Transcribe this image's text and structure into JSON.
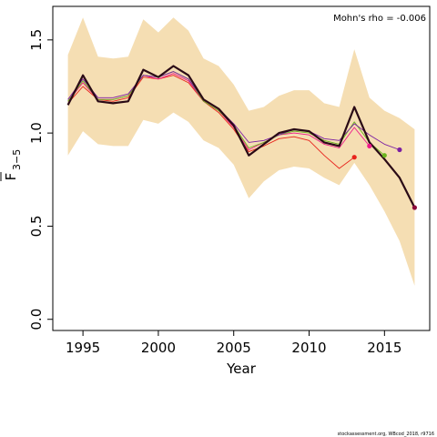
{
  "chart_data": {
    "type": "line",
    "xlabel": "Year",
    "ylabel_main": "F",
    "ylabel_sub": "3−5",
    "xlim": [
      1993,
      2018
    ],
    "ylim": [
      -0.06,
      1.68
    ],
    "x_ticks": [
      1995,
      2000,
      2005,
      2010,
      2015
    ],
    "y_ticks": [
      0.0,
      0.5,
      1.0,
      1.5
    ],
    "y_tick_labels": [
      "0.0",
      "0.5",
      "1.0",
      "1.5"
    ],
    "annotation": "Mohn's rho = -0.006",
    "footer": "stockassessment.org, WBcod_2018, r9716",
    "colors": {
      "band": "#f5deb3",
      "main": "#2a0a16"
    },
    "band": {
      "x": [
        1994,
        1995,
        1996,
        1997,
        1998,
        1999,
        2000,
        2001,
        2002,
        2003,
        2004,
        2005,
        2006,
        2007,
        2008,
        2009,
        2010,
        2011,
        2012,
        2013,
        2014,
        2015,
        2016,
        2017
      ],
      "upper": [
        1.42,
        1.62,
        1.41,
        1.4,
        1.41,
        1.61,
        1.54,
        1.62,
        1.55,
        1.4,
        1.36,
        1.26,
        1.12,
        1.14,
        1.2,
        1.23,
        1.23,
        1.16,
        1.14,
        1.45,
        1.19,
        1.12,
        1.08,
        1.02
      ],
      "lower": [
        0.88,
        1.01,
        0.94,
        0.93,
        0.93,
        1.07,
        1.05,
        1.11,
        1.06,
        0.96,
        0.92,
        0.83,
        0.65,
        0.74,
        0.8,
        0.82,
        0.81,
        0.76,
        0.72,
        0.84,
        0.72,
        0.58,
        0.42,
        0.18
      ]
    },
    "series": [
      {
        "color": "#2a0a16",
        "x": [
          1994,
          1995,
          1996,
          1997,
          1998,
          1999,
          2000,
          2001,
          2002,
          2003,
          2004,
          2005,
          2006,
          2007,
          2008,
          2009,
          2010,
          2011,
          2012,
          2013,
          2014,
          2015,
          2016,
          2017
        ],
        "values": [
          1.15,
          1.31,
          1.17,
          1.16,
          1.17,
          1.34,
          1.3,
          1.36,
          1.31,
          1.18,
          1.13,
          1.04,
          0.88,
          0.94,
          1.0,
          1.02,
          1.01,
          0.95,
          0.93,
          1.14,
          0.95,
          0.86,
          0.76,
          0.6
        ]
      },
      {
        "color": "#e8231c",
        "x": [
          1994,
          1995,
          1996,
          1997,
          1998,
          1999,
          2000,
          2001,
          2002,
          2003,
          2004,
          2005,
          2006,
          2007,
          2008,
          2009,
          2010,
          2011,
          2012,
          2013
        ],
        "values": [
          1.16,
          1.25,
          1.18,
          1.17,
          1.19,
          1.3,
          1.29,
          1.31,
          1.27,
          1.17,
          1.11,
          1.02,
          0.9,
          0.93,
          0.97,
          0.98,
          0.96,
          0.88,
          0.81,
          0.87
        ]
      },
      {
        "color": "#ee1a8a",
        "x": [
          1994,
          1995,
          1996,
          1997,
          1998,
          1999,
          2000,
          2001,
          2002,
          2003,
          2004,
          2005,
          2006,
          2007,
          2008,
          2009,
          2010,
          2011,
          2012,
          2013,
          2014
        ],
        "values": [
          1.17,
          1.27,
          1.18,
          1.18,
          1.2,
          1.31,
          1.29,
          1.32,
          1.28,
          1.17,
          1.12,
          1.03,
          0.91,
          0.95,
          0.99,
          1.0,
          0.99,
          0.94,
          0.92,
          1.03,
          0.93
        ]
      },
      {
        "color": "#6bb51f",
        "x": [
          1994,
          1995,
          1996,
          1997,
          1998,
          1999,
          2000,
          2001,
          2002,
          2003,
          2004,
          2005,
          2006,
          2007,
          2008,
          2009,
          2010,
          2011,
          2012,
          2013,
          2014,
          2015
        ],
        "values": [
          1.17,
          1.28,
          1.18,
          1.18,
          1.2,
          1.31,
          1.3,
          1.33,
          1.29,
          1.17,
          1.12,
          1.04,
          0.92,
          0.95,
          0.99,
          1.01,
          1.0,
          0.96,
          0.94,
          1.06,
          0.95,
          0.88
        ]
      },
      {
        "color": "#7b1fa2",
        "x": [
          1994,
          1995,
          1996,
          1997,
          1998,
          1999,
          2000,
          2001,
          2002,
          2003,
          2004,
          2005,
          2006,
          2007,
          2008,
          2009,
          2010,
          2011,
          2012,
          2013,
          2014,
          2015,
          2016
        ],
        "values": [
          1.18,
          1.29,
          1.19,
          1.19,
          1.21,
          1.31,
          1.3,
          1.33,
          1.29,
          1.18,
          1.13,
          1.05,
          0.95,
          0.96,
          0.99,
          1.02,
          1.01,
          0.97,
          0.96,
          1.05,
          0.99,
          0.94,
          0.91
        ]
      }
    ],
    "endpoints": [
      {
        "x": 2013,
        "y": 0.87,
        "color": "#e8231c"
      },
      {
        "x": 2014,
        "y": 0.93,
        "color": "#ee1a8a"
      },
      {
        "x": 2015,
        "y": 0.88,
        "color": "#6bb51f"
      },
      {
        "x": 2016,
        "y": 0.91,
        "color": "#7b1fa2"
      },
      {
        "x": 2017,
        "y": 0.6,
        "color": "#8b0a3a"
      }
    ]
  }
}
